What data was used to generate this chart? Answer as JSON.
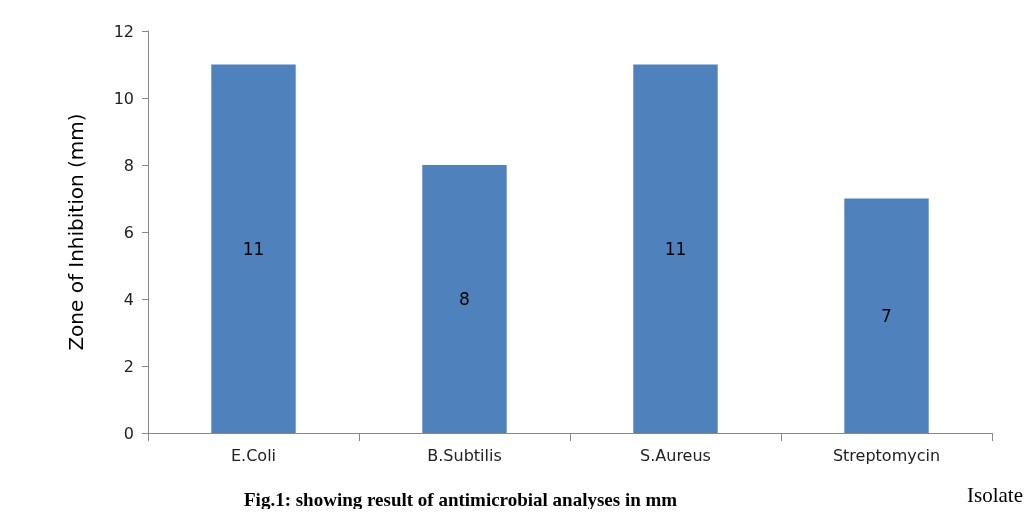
{
  "chart_data": {
    "type": "bar",
    "ylabel": "Zone of Inhibition (mm)",
    "xlabel": "Isolate",
    "categories": [
      "E.Coli",
      "B.Subtilis",
      "S.Aureus",
      "Streptomycin"
    ],
    "values": [
      11,
      8,
      11,
      7
    ],
    "color": "#4f81bd",
    "data_labels": true,
    "ylim": [
      0,
      12
    ],
    "yticks": [
      0,
      2,
      4,
      6,
      8,
      10,
      12
    ],
    "grid": false,
    "annotations": [
      "Fig.1: showing result of antimicrobial analyses in mm"
    ]
  }
}
